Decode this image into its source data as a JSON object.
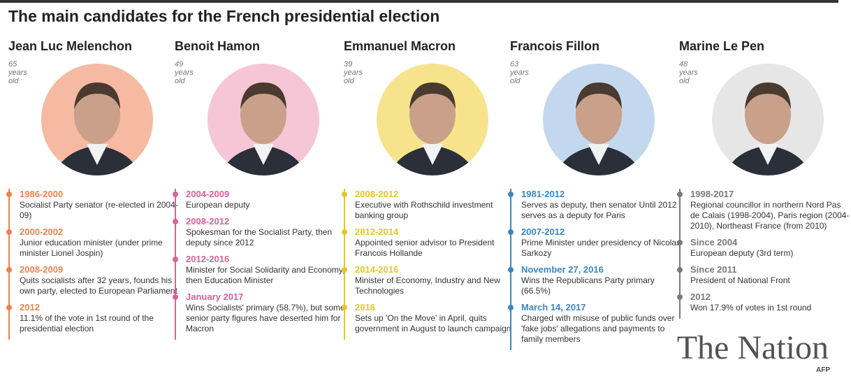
{
  "header": {
    "title": "The main candidates for the French presidential election"
  },
  "candidates": [
    {
      "name": "Jean Luc Melenchon",
      "age": "65 years old",
      "events": [
        {
          "date": "1986-2000",
          "text": "Socialist Party senator (re-elected in 2004-09)"
        },
        {
          "date": "2000-2002",
          "text": "Junior education minister (under prime minister Lionel Jospin)"
        },
        {
          "date": "2008-2009",
          "text": "Quits socialists after 32 years, founds his own party, elected to European Parliament"
        },
        {
          "date": "2012",
          "text": "11.1% of the vote in 1st round of the presidential election"
        }
      ]
    },
    {
      "name": "Benoit Hamon",
      "age": "49 years old",
      "events": [
        {
          "date": "2004-2009",
          "text": "European deputy"
        },
        {
          "date": "2008-2012",
          "text": "Spokesman for the Socialist Party, then deputy since 2012"
        },
        {
          "date": "2012-2016",
          "text": "Minister for Social Solidarity and Economy, then Education Minister"
        },
        {
          "date": "January 2017",
          "text": "Wins Socialists' primary (58.7%), but some senior party figures have deserted him for Macron"
        }
      ]
    },
    {
      "name": "Emmanuel Macron",
      "age": "39 years old",
      "events": [
        {
          "date": "2008-2012",
          "text": "Executive with Rothschild investment banking group"
        },
        {
          "date": "2012-2014",
          "text": "Appointed senior advisor to President Francois Hollande"
        },
        {
          "date": "2014-2016",
          "text": "Minister of Economy, Industry and New Technologies"
        },
        {
          "date": "2016",
          "text": "Sets up 'On the Move' in April, quits government in August to launch campaign"
        }
      ]
    },
    {
      "name": "Francois Fillon",
      "age": "63 years old",
      "events": [
        {
          "date": "1981-2012",
          "text": "Serves as deputy, then senator Until 2012 serves as a deputy for Paris"
        },
        {
          "date": "2007-2012",
          "text": "Prime Minister under presidency of Nicolas Sarkozy"
        },
        {
          "date": "November 27, 2016",
          "text": "Wins the Republicans Party primary (66.5%)"
        },
        {
          "date": "March 14, 2017",
          "text": "Charged with misuse of public funds over 'fake jobs' allegations and payments to family members"
        }
      ]
    },
    {
      "name": "Marine Le Pen",
      "age": "48 years old",
      "events": [
        {
          "date": "1998-2017",
          "text": "Regional councillor in northern Nord Pas de Calais (1998-2004), Paris region (2004-2010), Northeast France (from 2010)"
        },
        {
          "date": "Since 2004",
          "text": "European deputy (3rd term)"
        },
        {
          "date": "Since 2011",
          "text": "President of National Front"
        },
        {
          "date": "2012",
          "text": "Won 17.9% of votes in 1st round"
        }
      ]
    }
  ],
  "watermark": {
    "brand": "The Nation",
    "source": "AFP"
  }
}
